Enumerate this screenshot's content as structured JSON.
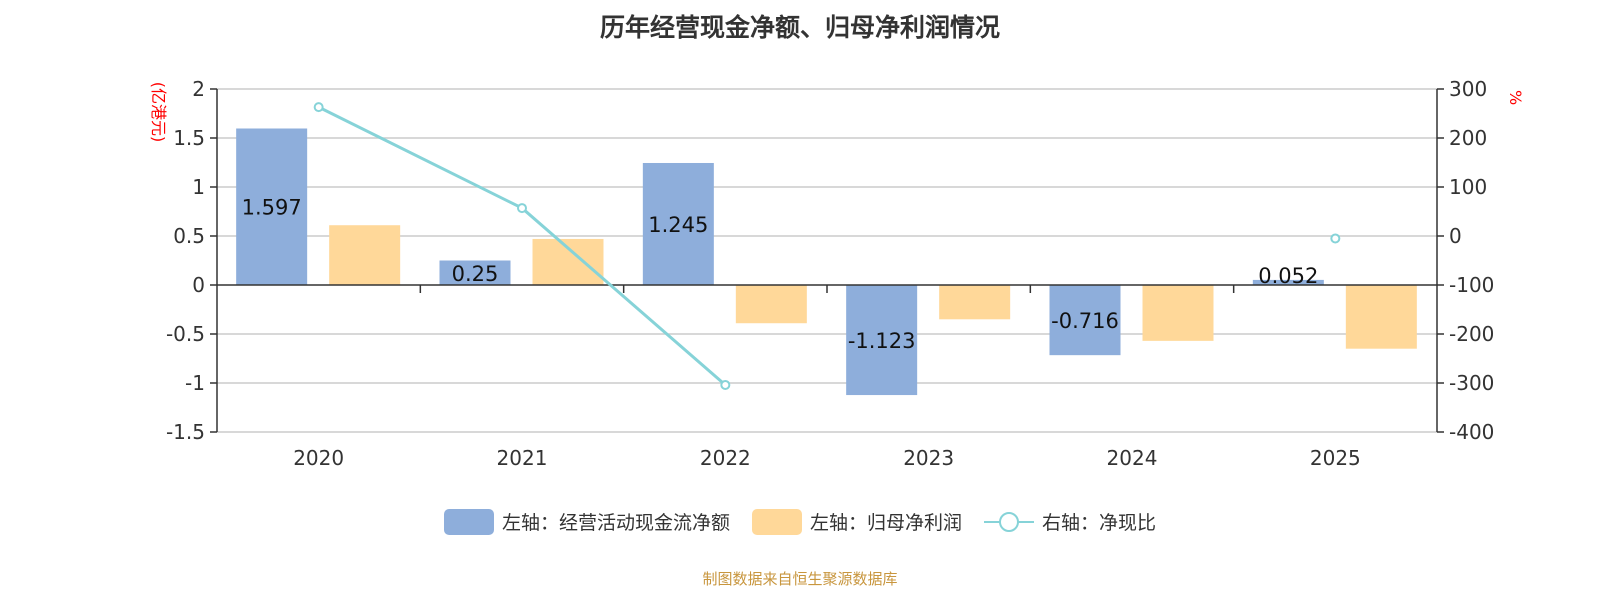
{
  "title": "历年经营现金净额、归母净利润情况",
  "source": "制图数据来自恒生聚源数据库",
  "chart_data": {
    "type": "bar",
    "categories": [
      "2020",
      "2021",
      "2022",
      "2023",
      "2024",
      "2025"
    ],
    "left_axis": {
      "label": "(亿港元)",
      "ylim": [
        -1.5,
        2
      ],
      "ticks": [
        "-1.5",
        "-1",
        "-0.5",
        "0",
        "0.5",
        "1",
        "1.5",
        "2"
      ],
      "label_color": "#ff0000"
    },
    "right_axis": {
      "label": "%",
      "ylim": [
        -400,
        300
      ],
      "ticks": [
        "-400",
        "-300",
        "-200",
        "-100",
        "0",
        "100",
        "200",
        "300"
      ],
      "label_color": "#ff0000"
    },
    "grid": true,
    "legend_position": "bottom",
    "series": [
      {
        "name": "左轴：经营活动现金流净额",
        "type": "bar",
        "axis": "left",
        "color": "#8eaedb",
        "values": [
          1.597,
          0.25,
          1.245,
          -1.123,
          -0.716,
          0.052
        ],
        "labels": [
          "1.597",
          "0.25",
          "1.245",
          "-1.123",
          "-0.716",
          "0.052"
        ]
      },
      {
        "name": "左轴：归母净利润",
        "type": "bar",
        "axis": "left",
        "color": "#ffd899",
        "values": [
          0.61,
          0.47,
          -0.39,
          -0.35,
          -0.57,
          -0.65
        ]
      },
      {
        "name": "右轴：净现比",
        "type": "line",
        "axis": "right",
        "color": "#86d3d8",
        "values": [
          263,
          57,
          -304,
          null,
          null,
          -5
        ]
      }
    ]
  }
}
